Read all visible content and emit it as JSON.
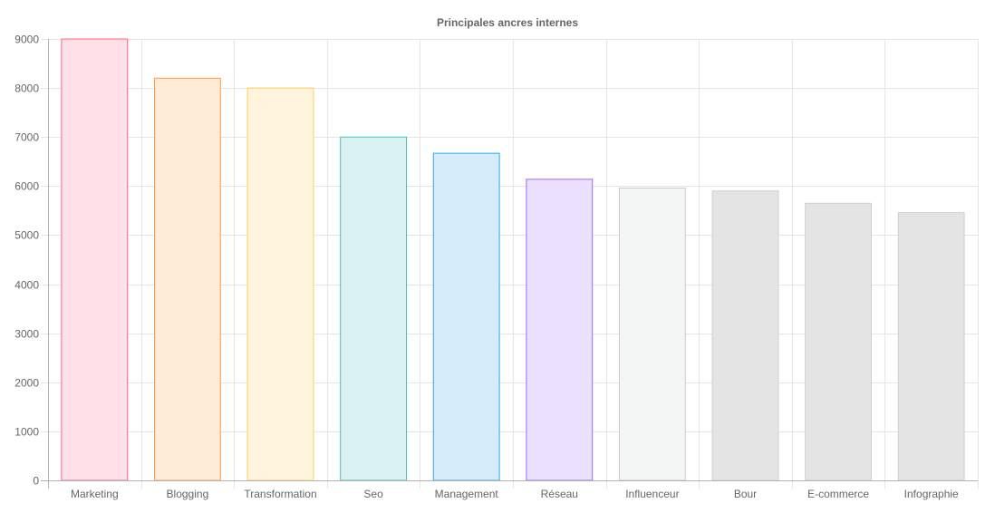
{
  "chart_data": {
    "type": "bar",
    "title": "Principales ancres internes",
    "xlabel": "",
    "ylabel": "",
    "categories": [
      "Marketing",
      "Blogging",
      "Transformation",
      "Seo",
      "Management",
      "Réseau",
      "Influenceur",
      "Bour",
      "E-commerce",
      "Infographie"
    ],
    "values": [
      9000,
      8200,
      8000,
      7000,
      6670,
      6140,
      5960,
      5900,
      5650,
      5460
    ],
    "ylim": [
      0,
      9000
    ],
    "yticks": [
      "0",
      "1000",
      "2000",
      "3000",
      "4000",
      "5000",
      "6000",
      "7000",
      "8000",
      "9000"
    ],
    "grid": true,
    "legend": "none",
    "colors": {
      "fill": [
        "#ffe0e6",
        "#ffecd9",
        "#fff5dd",
        "#dbf2f2",
        "#d7ecfb",
        "#ebe0ff",
        "#f4f5f5",
        "#e4e4e4",
        "#e4e4e4",
        "#e4e4e4"
      ],
      "stroke": [
        "#ff6384",
        "#ff9f40",
        "#ffcd56",
        "#4bc0c0",
        "#36a2eb",
        "#9966ff",
        "#c9cbcf",
        "#cfcfcf",
        "#cfcfcf",
        "#cfcfcf"
      ]
    }
  }
}
